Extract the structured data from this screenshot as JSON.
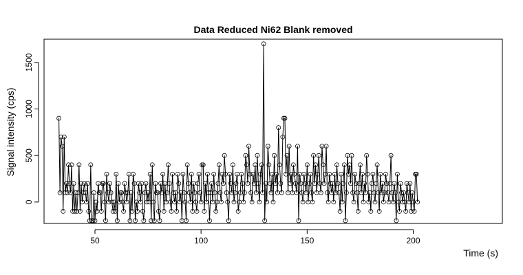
{
  "chart_data": {
    "type": "line",
    "title": "Data Reduced Ni62 Blank removed",
    "xlabel": "Time (s)",
    "ylabel": "Signal intensity (cps)",
    "xlim": [
      26,
      242
    ],
    "ylim": [
      -230,
      1750
    ],
    "x_ticks": [
      50,
      100,
      150,
      200
    ],
    "y_ticks": [
      0,
      500,
      1000,
      1500
    ],
    "x_tick_labels": [
      "50",
      "100",
      "150",
      "200"
    ],
    "y_tick_labels": [
      "0",
      "500",
      "1000",
      "1500"
    ],
    "grid": false,
    "legend": "none",
    "series_style": "line with open circle markers",
    "x_start": 33.0,
    "x_step": 0.5,
    "values": [
      900,
      100,
      700,
      600,
      -100,
      700,
      100,
      200,
      100,
      400,
      200,
      100,
      400,
      -100,
      200,
      -100,
      100,
      -100,
      100,
      400,
      -100,
      200,
      0,
      100,
      200,
      100,
      0,
      200,
      -100,
      -200,
      400,
      -200,
      -200,
      100,
      -200,
      0,
      -100,
      200,
      100,
      100,
      -100,
      200,
      200,
      0,
      -200,
      300,
      100,
      0,
      200,
      100,
      0,
      -100,
      0,
      -100,
      300,
      -200,
      200,
      0,
      100,
      100,
      0,
      -100,
      200,
      100,
      0,
      100,
      300,
      -200,
      100,
      -100,
      300,
      200,
      -200,
      0,
      -100,
      200,
      100,
      0,
      200,
      -100,
      -200,
      100,
      200,
      0,
      100,
      0,
      300,
      -200,
      400,
      0,
      -200,
      200,
      100,
      100,
      -100,
      -200,
      200,
      100,
      300,
      -100,
      200,
      0,
      100,
      400,
      200,
      0,
      -100,
      300,
      100,
      0,
      100,
      -100,
      300,
      200,
      0,
      100,
      -200,
      300,
      100,
      0,
      -200,
      400,
      200,
      100,
      0,
      300,
      -100,
      200,
      100,
      0,
      -100,
      200,
      300,
      100,
      0,
      400,
      400,
      -100,
      200,
      0,
      300,
      100,
      -200,
      100,
      200,
      0,
      300,
      100,
      -100,
      0,
      200,
      400,
      100,
      0,
      300,
      200,
      500,
      300,
      100,
      0,
      -200,
      300,
      200,
      100,
      400,
      0,
      100,
      200,
      300,
      -100,
      0,
      100,
      300,
      200,
      0,
      100,
      500,
      400,
      200,
      600,
      300,
      100,
      0,
      300,
      200,
      400,
      100,
      500,
      200,
      0,
      300,
      400,
      100,
      1700,
      -200,
      200,
      0,
      600,
      400,
      200,
      100,
      300,
      0,
      500,
      200,
      300,
      100,
      800,
      400,
      200,
      100,
      700,
      900,
      900,
      300,
      500,
      100,
      600,
      200,
      300,
      100,
      400,
      300,
      200,
      100,
      600,
      -200,
      300,
      200,
      100,
      0,
      300,
      200,
      100,
      400,
      0,
      200,
      300,
      100,
      0,
      500,
      200,
      400,
      100,
      300,
      500,
      200,
      100,
      600,
      400,
      200,
      300,
      600,
      100,
      0,
      300,
      200,
      100,
      200,
      0,
      300,
      100,
      400,
      200,
      100,
      -100,
      300,
      0,
      200,
      400,
      -200,
      100,
      500,
      300,
      400,
      200,
      500,
      100,
      0,
      300,
      200,
      100,
      -100,
      200,
      400,
      100,
      300,
      0,
      200,
      100,
      500,
      300,
      0,
      100,
      -100,
      200,
      300,
      100,
      0,
      200,
      400,
      100,
      -100,
      300,
      100,
      200,
      0,
      100,
      300,
      200,
      100,
      0,
      200,
      500,
      100,
      0,
      200,
      100,
      -200,
      300,
      0,
      -100,
      200,
      100,
      0,
      100,
      0,
      -100,
      200,
      100,
      0,
      200,
      -100,
      100,
      0,
      -100,
      300,
      300,
      0
    ]
  }
}
